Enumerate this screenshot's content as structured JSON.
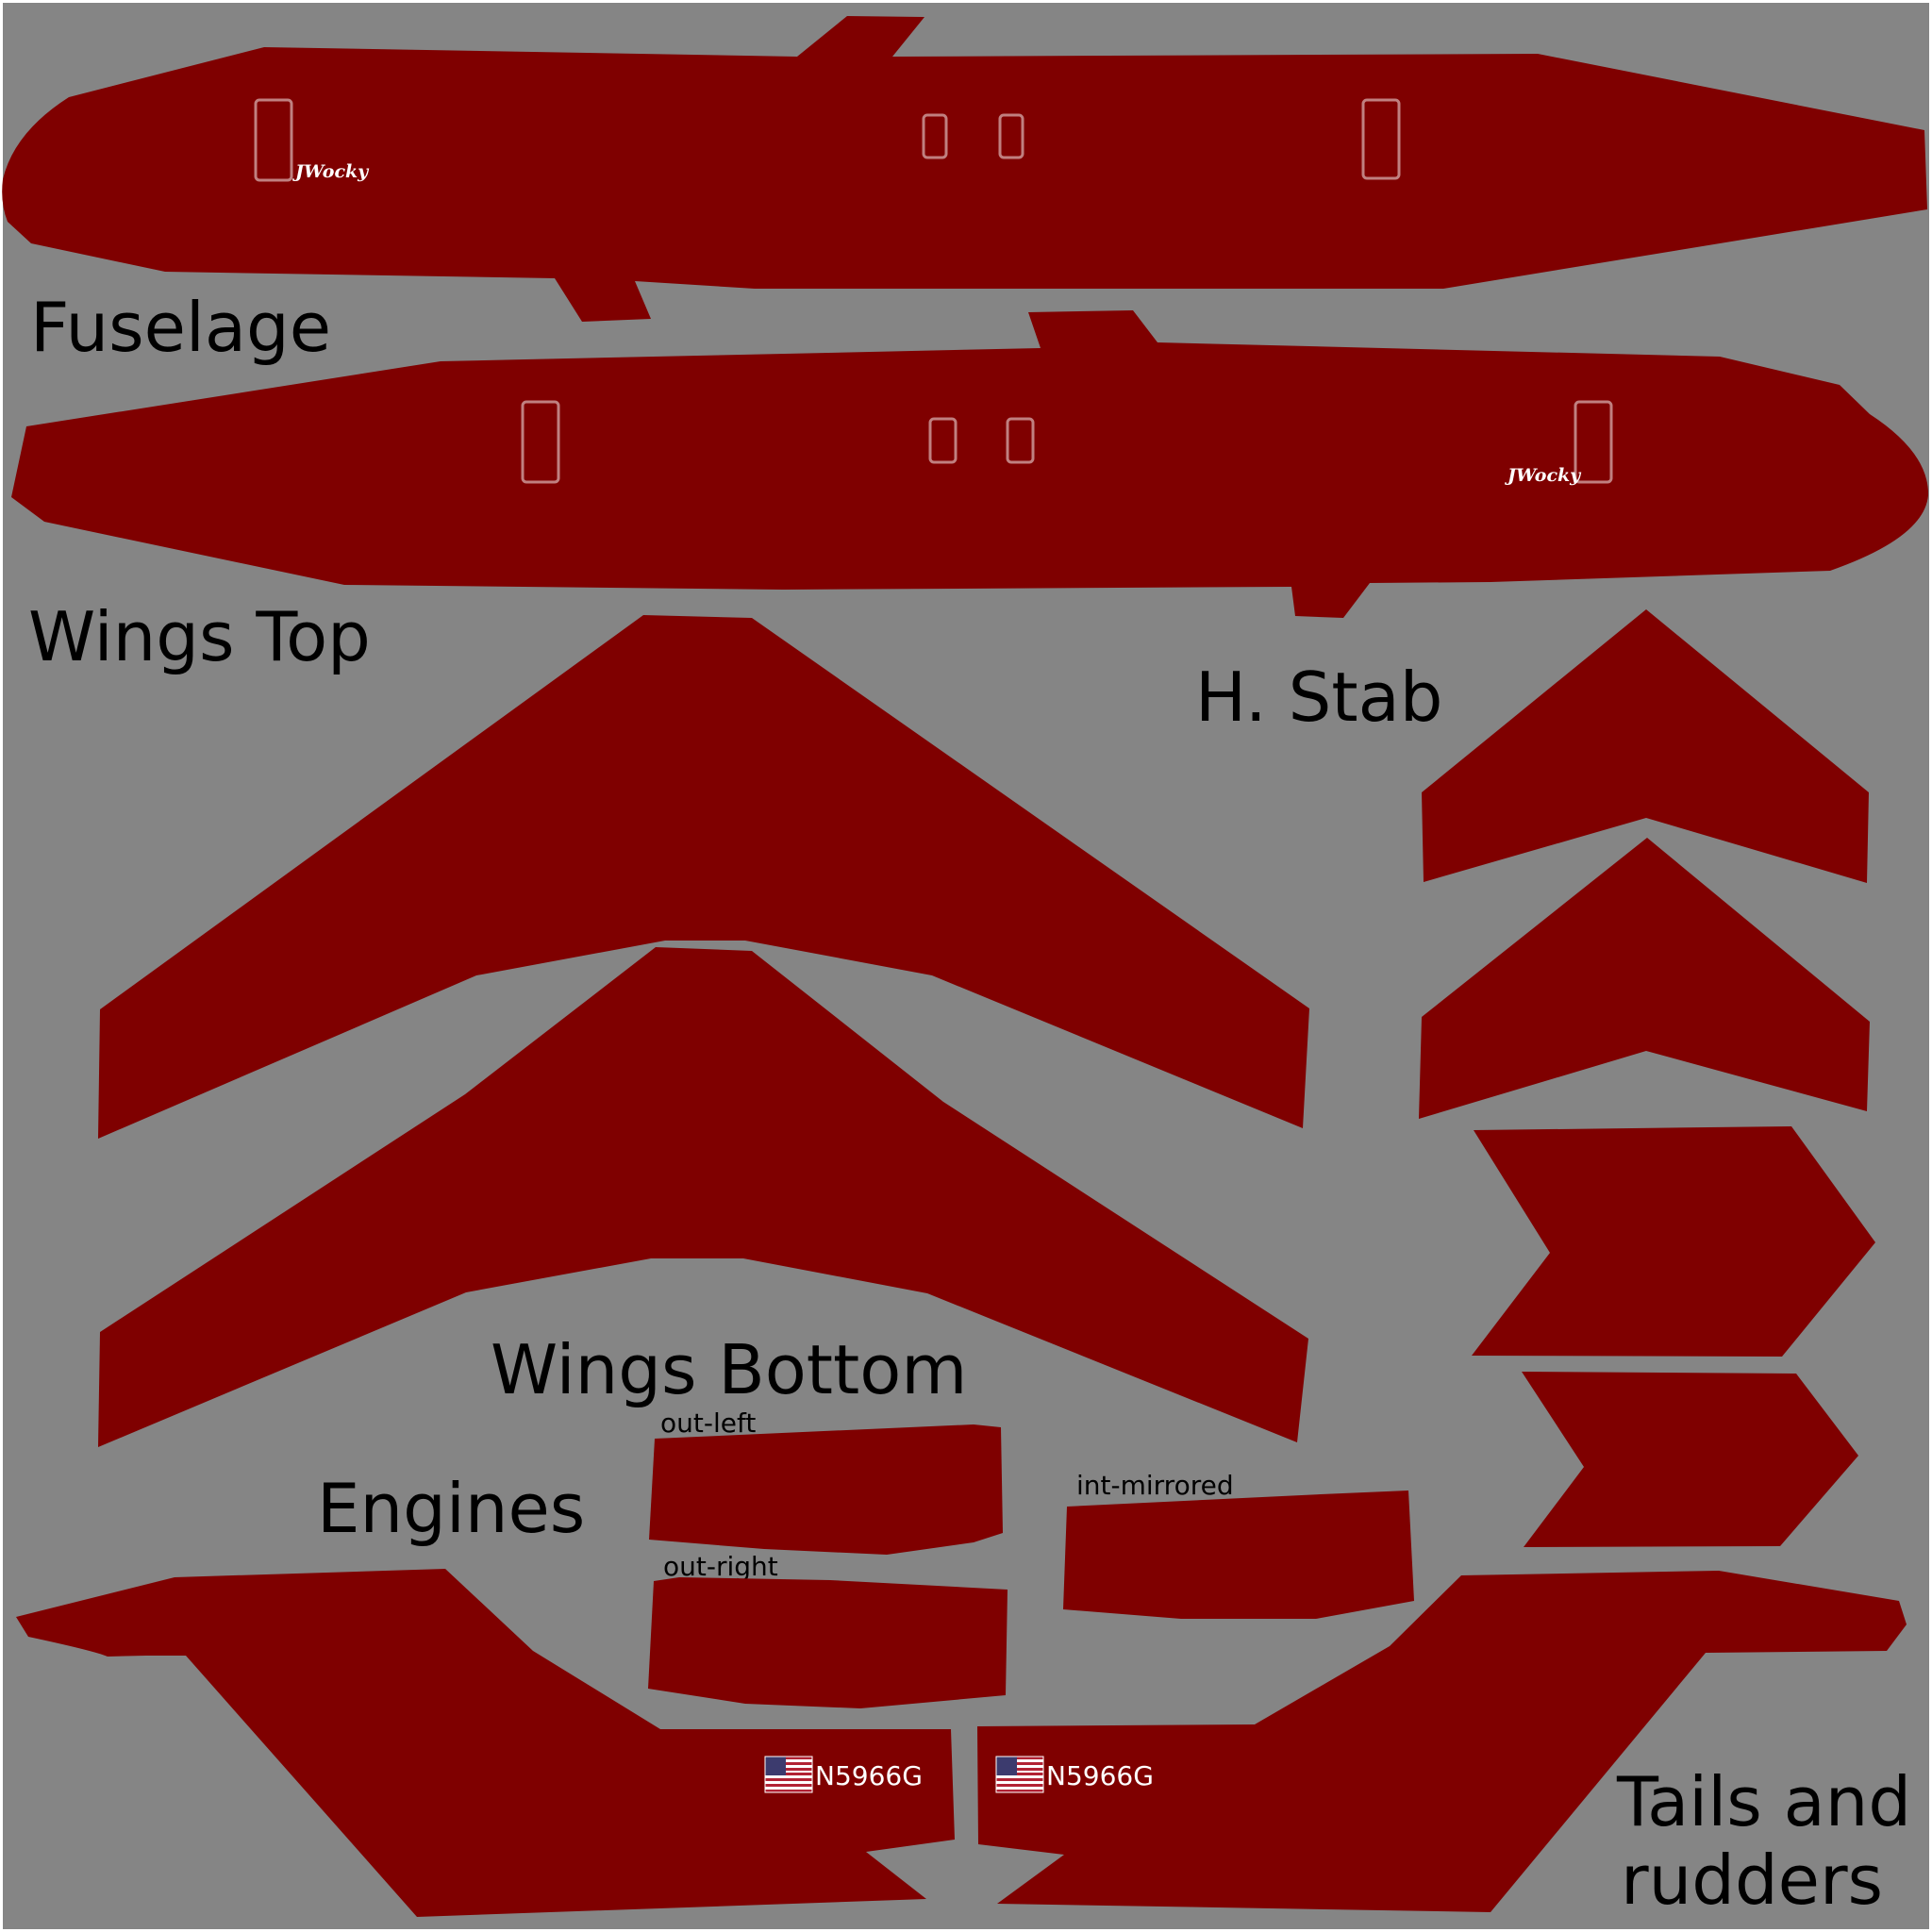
{
  "labels": {
    "fuselage": "Fuselage",
    "wings_top": "Wings Top",
    "h_stab": "H. Stab",
    "wings_bottom": "Wings Bottom",
    "engines": "Engines",
    "tails_line1": "Tails and",
    "tails_line2": "rudders",
    "out_left": "out-left",
    "out_right": "out-right",
    "int_mirrored": "int-mirrored"
  },
  "watermark": "JWocky",
  "registration": "N5966G",
  "flag_icon": "us-flag-icon",
  "colors": {
    "background": "#858585",
    "part": "#7f0000",
    "window_outline": "#c08080",
    "label": "#000000",
    "marking_text": "#ffffff"
  }
}
